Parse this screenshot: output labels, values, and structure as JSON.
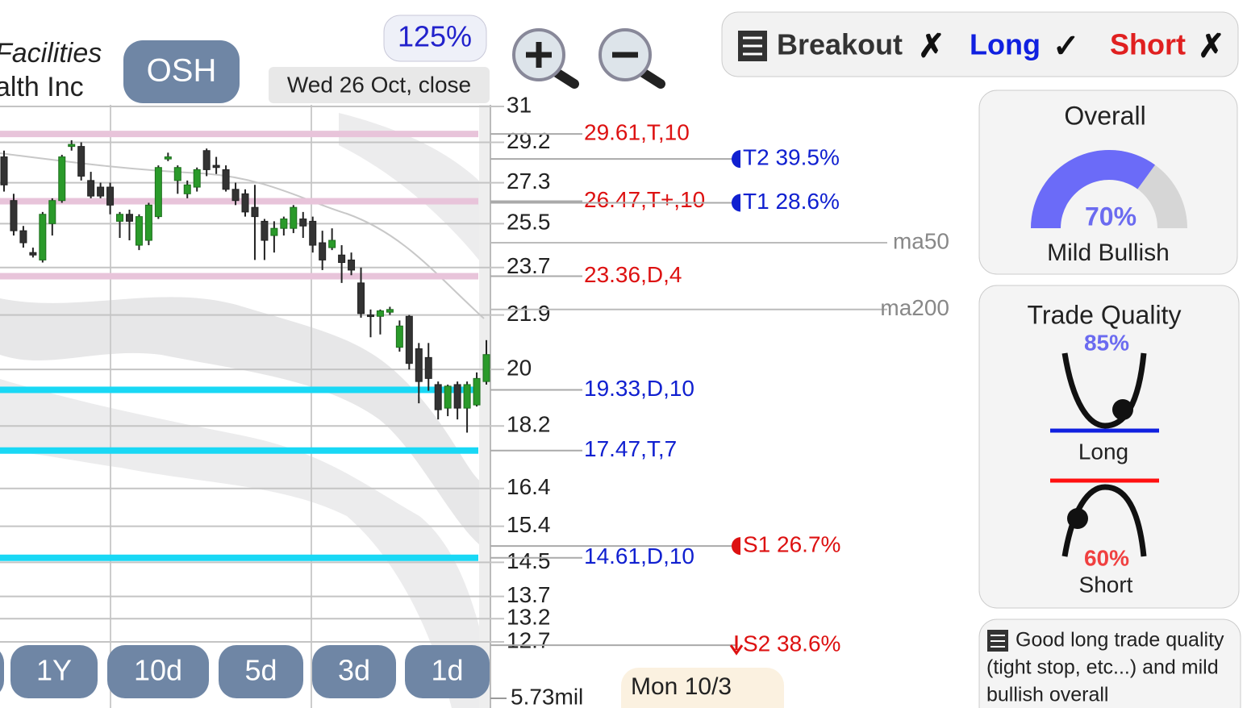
{
  "header": {
    "company_lines": [
      "Facilities",
      "alth Inc"
    ],
    "ticker": "OSH",
    "zoom": "125%",
    "date": "Wed 26 Oct, close"
  },
  "signals": [
    {
      "label": "Breakout",
      "mark": "✗",
      "color": "#333333"
    },
    {
      "label": "Long",
      "mark": "✓",
      "color": "#1020e0"
    },
    {
      "label": "Short",
      "mark": "✗",
      "color": "#e02020"
    }
  ],
  "price_axis": {
    "log_scale": true,
    "ylim": [
      12.7,
      31
    ],
    "ticks": [
      31,
      29.2,
      27.3,
      25.5,
      23.7,
      21.9,
      20,
      18.2,
      16.4,
      15.4,
      14.5,
      13.7,
      13.2,
      12.7
    ],
    "volume_label": "5.73mil"
  },
  "candles": [
    [
      28.5,
      28.8,
      26.9,
      27.2
    ],
    [
      26.5,
      26.8,
      25.0,
      25.2
    ],
    [
      25.2,
      25.4,
      24.5,
      24.7
    ],
    [
      24.3,
      24.5,
      24.1,
      24.2
    ],
    [
      24.0,
      26.0,
      23.9,
      25.9
    ],
    [
      25.5,
      26.6,
      25.0,
      26.5
    ],
    [
      26.5,
      28.6,
      26.4,
      28.5
    ],
    [
      29.0,
      29.3,
      28.8,
      29.1
    ],
    [
      29.0,
      29.2,
      27.4,
      27.6
    ],
    [
      27.4,
      27.8,
      26.6,
      26.7
    ],
    [
      27.1,
      27.3,
      26.6,
      26.7
    ],
    [
      27.1,
      27.3,
      25.9,
      26.3
    ],
    [
      25.6,
      26.0,
      24.9,
      25.9
    ],
    [
      25.9,
      26.1,
      24.8,
      25.6
    ],
    [
      24.6,
      25.9,
      24.4,
      25.8
    ],
    [
      24.8,
      26.4,
      24.6,
      26.3
    ],
    [
      25.8,
      28.1,
      25.7,
      28.0
    ],
    [
      28.4,
      28.7,
      28.3,
      28.5
    ],
    [
      27.4,
      28.1,
      26.8,
      28.0
    ],
    [
      26.8,
      27.4,
      26.6,
      27.2
    ],
    [
      27.1,
      28.0,
      26.9,
      27.9
    ],
    [
      28.8,
      28.9,
      27.6,
      27.9
    ],
    [
      28.1,
      28.5,
      27.7,
      28.0
    ],
    [
      27.9,
      28.1,
      26.9,
      27.0
    ],
    [
      27.0,
      27.3,
      26.3,
      26.5
    ],
    [
      26.8,
      27.0,
      25.8,
      26.0
    ],
    [
      26.2,
      27.2,
      24.0,
      25.8
    ],
    [
      25.6,
      25.7,
      24.0,
      24.8
    ],
    [
      25.0,
      25.6,
      24.3,
      25.3
    ],
    [
      25.3,
      25.8,
      25.0,
      25.7
    ],
    [
      25.3,
      26.3,
      25.1,
      26.2
    ],
    [
      25.7,
      26.0,
      24.9,
      25.4
    ],
    [
      25.6,
      25.8,
      24.3,
      24.6
    ],
    [
      24.7,
      25.2,
      23.6,
      24.0
    ],
    [
      24.5,
      25.3,
      24.4,
      24.8
    ],
    [
      24.2,
      24.6,
      23.1,
      23.9
    ],
    [
      24.0,
      24.3,
      23.4,
      23.6
    ],
    [
      23.1,
      23.7,
      21.8,
      21.95
    ],
    [
      21.9,
      22.1,
      21.1,
      21.85
    ],
    [
      21.85,
      22.1,
      21.2,
      22.05
    ],
    [
      22.0,
      22.2,
      21.9,
      22.1
    ],
    [
      20.75,
      21.7,
      20.6,
      21.5
    ],
    [
      21.85,
      21.9,
      20.0,
      20.2
    ],
    [
      20.7,
      20.9,
      18.9,
      19.6
    ],
    [
      20.4,
      20.9,
      19.3,
      19.7
    ],
    [
      19.5,
      19.6,
      18.4,
      18.7
    ],
    [
      18.75,
      19.5,
      18.5,
      19.45
    ],
    [
      19.5,
      19.6,
      18.4,
      18.75
    ],
    [
      18.75,
      19.6,
      18.0,
      19.5
    ],
    [
      18.85,
      19.9,
      18.8,
      19.7
    ],
    [
      19.6,
      21.0,
      19.5,
      20.5
    ]
  ],
  "levels": [
    {
      "value": 29.61,
      "label": "29.61,T,10",
      "color": "#e8c4da",
      "text_color": "#dd1111"
    },
    {
      "value": 26.47,
      "label": "26.47,T+,10",
      "color": "#e8c4da",
      "text_color": "#dd1111"
    },
    {
      "value": 23.36,
      "label": "23.36,D,4",
      "color": "#e8c4da",
      "text_color": "#dd1111"
    },
    {
      "value": 19.33,
      "label": "19.33,D,10",
      "color": "#19d8f5",
      "text_color": "#1020d0"
    },
    {
      "value": 17.47,
      "label": "17.47,T,7",
      "color": "#19d8f5",
      "text_color": "#1020d0"
    },
    {
      "value": 14.61,
      "label": "14.61,D,10",
      "color": "#19d8f5",
      "text_color": "#1020d0"
    }
  ],
  "targets": [
    {
      "price": 28.4,
      "label": "T2 39.5%",
      "color": "#1020d0"
    },
    {
      "price": 26.4,
      "label": "T1 28.6%",
      "color": "#1020d0"
    },
    {
      "price": 14.9,
      "label": "S1 26.7%",
      "color": "#dd1111"
    },
    {
      "price": 12.63,
      "label": "S2 38.6%",
      "color": "#dd1111"
    }
  ],
  "moving_averages": [
    {
      "price": 24.7,
      "label": "ma50"
    },
    {
      "price": 22.1,
      "label": "ma200"
    }
  ],
  "range_buttons": [
    "1Y",
    "10d",
    "5d",
    "3d",
    "1d"
  ],
  "date_tag": "Mon 10/3",
  "overall": {
    "title": "Overall",
    "value": 70,
    "value_label": "70%",
    "text": "Mild Bullish"
  },
  "trade_quality": {
    "title": "Trade Quality",
    "long_value": 85,
    "long_label": "85%",
    "long_text": "Long",
    "short_value": 60,
    "short_label": "60%",
    "short_text": "Short"
  },
  "note": {
    "lines": [
      "Good long trade quality",
      "(tight stop, etc...) and mild",
      "bullish overall"
    ]
  }
}
